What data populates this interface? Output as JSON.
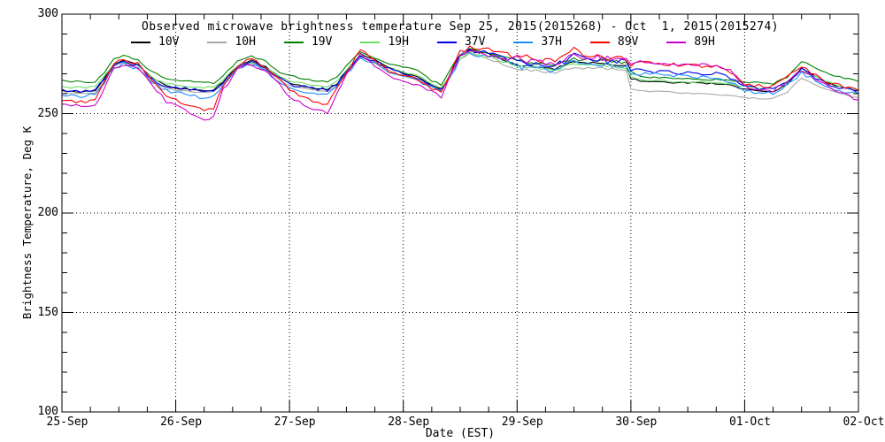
{
  "chart_data": {
    "type": "line",
    "title": "Observed microwave brightness temperature Sep 25, 2015(2015268) - Oct  1, 2015(2015274)",
    "xlabel": "Date (EST)",
    "ylabel": "Brightness Temperature, Deg K",
    "ylim": [
      100,
      300
    ],
    "y_major_step": 50,
    "y_minor_step": 10,
    "x_range_hours": [
      0,
      168
    ],
    "x_major_step_hours": 24,
    "x_minor_step_hours": 6,
    "x_tick_labels": [
      "25-Sep",
      "26-Sep",
      "27-Sep",
      "28-Sep",
      "29-Sep",
      "30-Sep",
      "01-Oct",
      "02-Oct"
    ],
    "grid": "dotted lines at major ticks, all four axes ticked inward",
    "legend_position": "inside top, single row",
    "axis_color": "#000000",
    "noise_boost": {
      "from": 82,
      "to": 120,
      "factor": 1.8
    },
    "anchor_hours": [
      0,
      4,
      7,
      9,
      11,
      13,
      16,
      19,
      22,
      25,
      28,
      30,
      32,
      34,
      37,
      40,
      43,
      46,
      48,
      51,
      54,
      56,
      58,
      60,
      63,
      66,
      69,
      72,
      75,
      78,
      80,
      82,
      84,
      86,
      89,
      92,
      96,
      100,
      104,
      108,
      110,
      113,
      116,
      119,
      120,
      122,
      126,
      130,
      134,
      138,
      141,
      144,
      147,
      150,
      153,
      156,
      159,
      162,
      165,
      168
    ],
    "series": [
      {
        "name": "10V",
        "color": "#000000",
        "noise": 0.35,
        "values": [
          261.5,
          261,
          261.5,
          268,
          275,
          277,
          274.5,
          268,
          264,
          262.5,
          262,
          261.5,
          262,
          266,
          274,
          277,
          273.5,
          268,
          265.5,
          263.5,
          262.5,
          262,
          265,
          271,
          280,
          277,
          273,
          270.5,
          268.5,
          264.5,
          262.5,
          270,
          279,
          282,
          280.5,
          278,
          274.5,
          273.5,
          272.5,
          276,
          275.5,
          275.5,
          275,
          274,
          268,
          266.5,
          266,
          265.5,
          265.5,
          265,
          264.5,
          262,
          261.5,
          261,
          265,
          273,
          268.5,
          265,
          263,
          261.5
        ]
      },
      {
        "name": "10H",
        "color": "#a8a8a8",
        "noise": 0.35,
        "values": [
          260.5,
          260,
          260.5,
          267,
          274,
          275.5,
          273,
          266.5,
          262.5,
          261.5,
          261,
          260.5,
          261,
          265,
          272.5,
          275.5,
          272,
          266.5,
          264,
          262.5,
          261.5,
          261,
          264,
          270,
          278.5,
          275.5,
          271.5,
          269,
          267,
          263.5,
          261.5,
          268.5,
          277,
          280,
          278.5,
          276,
          272.5,
          271.5,
          270.5,
          273.5,
          273,
          273,
          272.5,
          271.5,
          263,
          261.5,
          261,
          260.5,
          260,
          259.5,
          259,
          258,
          257.5,
          257.5,
          261,
          268,
          264.5,
          261.5,
          259.5,
          258
        ]
      },
      {
        "name": "19V",
        "color": "#008000",
        "noise": 0.45,
        "values": [
          266.5,
          266,
          266,
          271,
          277.5,
          279,
          277,
          271,
          267.5,
          266.5,
          266,
          265.5,
          265.5,
          269,
          276.5,
          279,
          276,
          271,
          269,
          267.5,
          266.5,
          266,
          268.5,
          274,
          281,
          278,
          275,
          273.5,
          272,
          266.5,
          264.5,
          272,
          280,
          282.5,
          281,
          279,
          276.5,
          275.5,
          274.5,
          277.5,
          277,
          277,
          276.5,
          275.5,
          271,
          268.5,
          268,
          267.5,
          267.5,
          267,
          266.5,
          266,
          265.5,
          265,
          268.5,
          276.5,
          272.5,
          269.5,
          268,
          266.5
        ]
      },
      {
        "name": "19H",
        "color": "#66e066",
        "noise": 0.45,
        "values": [
          263.5,
          263,
          263.5,
          269,
          275,
          276,
          274,
          268,
          265,
          264,
          263.5,
          263,
          263.5,
          267,
          274,
          276,
          273,
          268.5,
          266.5,
          265,
          264,
          263.5,
          266.5,
          272,
          279,
          275.5,
          272.5,
          271,
          269.5,
          265,
          263,
          270,
          278,
          280.5,
          279,
          277,
          274,
          273,
          272,
          275,
          274.5,
          274.5,
          274,
          273,
          269,
          267,
          266.5,
          266,
          266,
          265.5,
          265,
          263.5,
          263,
          262.5,
          266,
          271.5,
          268.5,
          265.5,
          263.5,
          262
        ]
      },
      {
        "name": "37V",
        "color": "#0000ee",
        "noise": 0.9,
        "values": [
          261.8,
          261.3,
          261.8,
          268,
          275,
          276.5,
          274,
          267.5,
          263.5,
          262.5,
          262,
          261.5,
          262,
          266,
          274,
          276.5,
          273,
          267.5,
          265,
          263.5,
          262.5,
          262,
          265,
          271,
          279.5,
          276.5,
          272.5,
          270,
          268,
          264.5,
          262,
          270,
          279,
          282.5,
          281,
          278.5,
          276,
          274.5,
          273.5,
          279,
          277,
          277.5,
          276.5,
          275.5,
          272,
          271.5,
          271,
          270.5,
          270,
          270,
          268,
          263.5,
          262.5,
          262,
          266,
          272,
          268,
          264.5,
          262.5,
          261
        ]
      },
      {
        "name": "37H",
        "color": "#1e90ff",
        "noise": 0.9,
        "values": [
          259.3,
          258.8,
          259.3,
          266,
          273.5,
          275,
          272.5,
          266,
          261.5,
          260,
          259,
          258,
          259.5,
          264.5,
          272.5,
          275,
          271.5,
          266,
          263,
          261,
          259.5,
          259,
          263.5,
          270,
          278,
          275,
          270.5,
          268.5,
          266.5,
          263,
          261,
          269,
          278,
          281,
          279.5,
          277,
          274,
          272.5,
          271.5,
          277,
          275,
          275.5,
          274.5,
          274,
          270.5,
          270,
          269.5,
          269,
          268.5,
          268,
          266,
          261.5,
          260.5,
          260,
          264.5,
          270.5,
          266.5,
          263,
          261,
          259.5
        ]
      },
      {
        "name": "89V",
        "color": "#ff0000",
        "noise": 0.9,
        "values": [
          257,
          256,
          257,
          266,
          275,
          277.5,
          275,
          267,
          259,
          256,
          253.5,
          251,
          253,
          264,
          274,
          277.5,
          273.5,
          266.5,
          262,
          258,
          255.5,
          254.5,
          262,
          271,
          282,
          277,
          271.5,
          269.5,
          267,
          263,
          260.5,
          271,
          281,
          284,
          282.5,
          280,
          279,
          277,
          276,
          283,
          279,
          278.5,
          278,
          277.5,
          275,
          275.5,
          275,
          274.5,
          274,
          273.5,
          271,
          265,
          264,
          263.5,
          268,
          274,
          269,
          265.5,
          263.5,
          262
        ]
      },
      {
        "name": "89H",
        "color": "#cc00cc",
        "noise": 0.9,
        "values": [
          254.5,
          253.5,
          254,
          263.5,
          273,
          274.5,
          272.5,
          264.5,
          256,
          252.5,
          249,
          246.5,
          249,
          262,
          272,
          275,
          271,
          264,
          259,
          254,
          251.5,
          250.5,
          260,
          269.5,
          280,
          273.5,
          269,
          267,
          264.5,
          261,
          258.5,
          269,
          279,
          282,
          280.5,
          278.5,
          278,
          275.5,
          274.5,
          281,
          278.5,
          278.5,
          277.5,
          277,
          274.5,
          276,
          275.5,
          275,
          274.5,
          274,
          271.5,
          263.5,
          262,
          261.5,
          266.5,
          272,
          267,
          263,
          260.5,
          256.5
        ]
      }
    ]
  }
}
